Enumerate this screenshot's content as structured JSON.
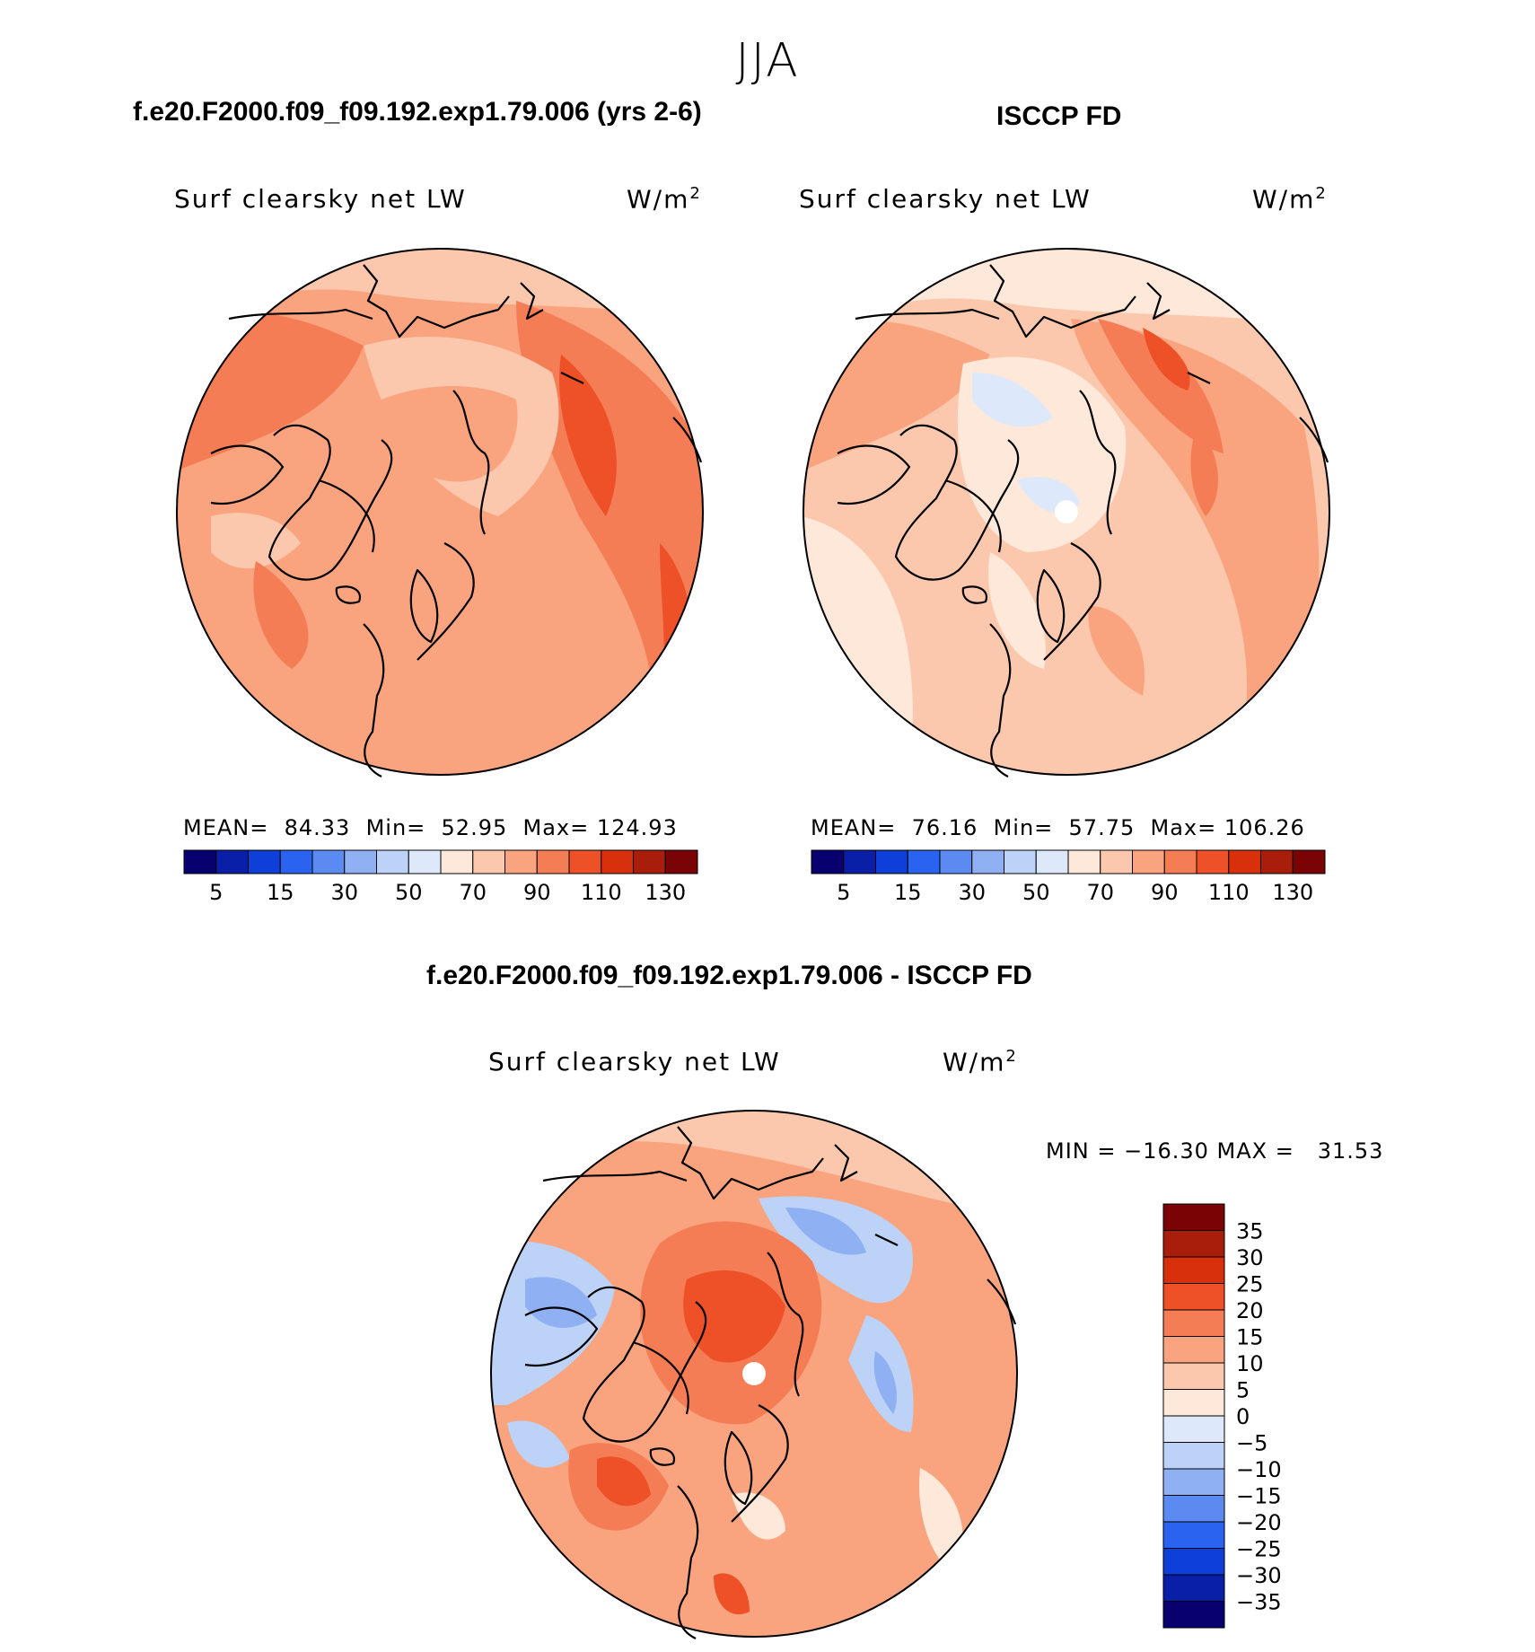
{
  "season": "JJA",
  "panels": {
    "model": {
      "title": "f.e20.F2000.f09_f09.192.exp1.79.006 (yrs 2-6)",
      "variable": "Surf clearsky net LW",
      "units_base": "W/m",
      "units_exp": "2",
      "stats": "MEAN=  84.33  Min=  52.95  Max= 124.93"
    },
    "obs": {
      "title": "ISCCP FD",
      "variable": "Surf clearsky net LW",
      "units_base": "W/m",
      "units_exp": "2",
      "stats": "MEAN=  76.16  Min=  57.75  Max= 106.26"
    },
    "diff": {
      "title": "f.e20.F2000.f09_f09.192.exp1.79.006 - ISCCP FD",
      "variable": "Surf clearsky net LW",
      "units_base": "W/m",
      "units_exp": "2",
      "stats": "MIN = −16.30 MAX =   31.53"
    }
  },
  "colorbar_abs": {
    "colors": [
      "#08006e",
      "#0a1fa8",
      "#0e3fd8",
      "#2a63f0",
      "#5b8bf0",
      "#8fb0f3",
      "#bcd2f7",
      "#dde9fa",
      "#fde8d9",
      "#fbc8ad",
      "#f9a47f",
      "#f57d55",
      "#ee5028",
      "#d8300d",
      "#a91e0a",
      "#7a0306"
    ],
    "tick_labels": [
      "5",
      "15",
      "30",
      "50",
      "70",
      "90",
      "110",
      "130"
    ]
  },
  "colorbar_diff": {
    "colors": [
      "#7a0306",
      "#a91e0a",
      "#d8300d",
      "#ee5028",
      "#f57d55",
      "#f9a47f",
      "#fbc8ad",
      "#fde8d9",
      "#dde9fa",
      "#bcd2f7",
      "#8fb0f3",
      "#5b8bf0",
      "#2a63f0",
      "#0e3fd8",
      "#0a1fa8",
      "#08006e"
    ],
    "tick_labels": [
      "35",
      "30",
      "25",
      "20",
      "15",
      "10",
      "5",
      "0",
      "−5",
      "−10",
      "−15",
      "−20",
      "−25",
      "−30",
      "−35"
    ]
  }
}
